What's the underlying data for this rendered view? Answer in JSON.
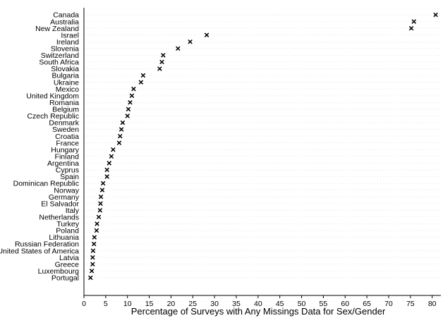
{
  "chart_data": {
    "type": "scatter",
    "orientation": "horizontal-dot-plot",
    "title": "",
    "xlabel": "Percentage of Surveys with Any Missings Data for Sex/Gender",
    "ylabel": "",
    "xlim": [
      0,
      82
    ],
    "xticks": [
      0,
      5,
      10,
      15,
      20,
      25,
      30,
      35,
      40,
      45,
      50,
      55,
      60,
      65,
      70,
      75,
      80
    ],
    "grid": false,
    "legend": "none",
    "marker": "x",
    "categories": [
      "Canada",
      "Australia",
      "New Zealand",
      "Israel",
      "Ireland",
      "Slovenia",
      "Switzerland",
      "South Africa",
      "Slovakia",
      "Bulgaria",
      "Ukraine",
      "Mexico",
      "United Kingdom",
      "Romania",
      "Belgium",
      "Czech Republic",
      "Denmark",
      "Sweden",
      "Croatia",
      "France",
      "Hungary",
      "Finland",
      "Argentina",
      "Cyprus",
      "Spain",
      "Dominican Republic",
      "Norway",
      "Germany",
      "El Salvador",
      "Italy",
      "Netherlands",
      "Turkey",
      "Poland",
      "Lithuania",
      "Russian Federation",
      "United States of America",
      "Latvia",
      "Greece",
      "Luxembourg",
      "Portugal"
    ],
    "values": [
      80.8,
      75.8,
      75.2,
      28.2,
      24.4,
      21.6,
      18.2,
      17.9,
      17.4,
      13.6,
      13.1,
      11.4,
      11.0,
      10.6,
      10.2,
      10.0,
      8.9,
      8.6,
      8.3,
      8.1,
      6.7,
      6.3,
      5.8,
      5.3,
      5.3,
      4.4,
      4.2,
      3.9,
      3.8,
      3.7,
      3.4,
      3.0,
      2.9,
      2.4,
      2.3,
      2.1,
      2.0,
      2.0,
      1.8,
      1.5
    ]
  }
}
